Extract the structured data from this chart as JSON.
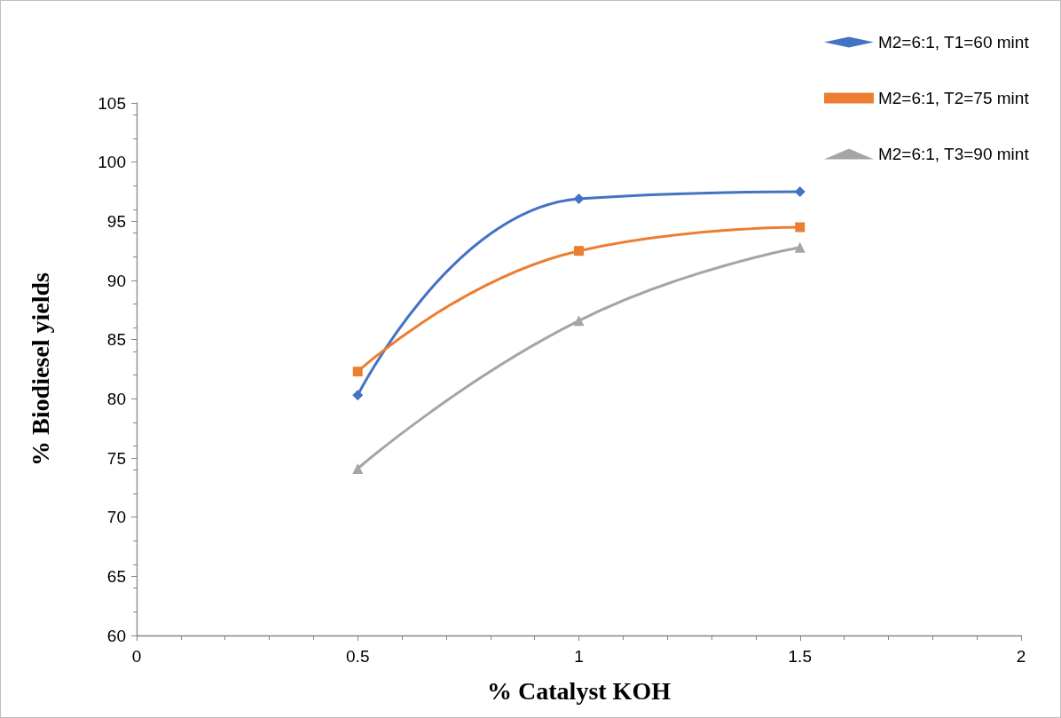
{
  "chart_data": {
    "type": "line",
    "xlabel": "% Catalyst KOH",
    "ylabel": "% Biodiesel yields",
    "x": [
      0.5,
      1,
      1.5
    ],
    "series": [
      {
        "name": "M2=6:1, T1=60 mint",
        "color": "#4472c4",
        "marker": "diamond",
        "values": [
          80.3,
          96.9,
          97.5
        ]
      },
      {
        "name": "M2=6:1, T2=75 mint",
        "color": "#ed7d31",
        "marker": "square",
        "values": [
          82.3,
          92.5,
          94.5
        ]
      },
      {
        "name": "M2=6:1, T3=90 mint",
        "color": "#a5a5a5",
        "marker": "triangle",
        "values": [
          74.1,
          86.6,
          92.8
        ]
      }
    ],
    "xlim": [
      0,
      2
    ],
    "xticks": [
      0,
      0.5,
      1,
      1.5,
      2
    ],
    "ylim": [
      60,
      105
    ],
    "yticks": [
      60,
      65,
      70,
      75,
      80,
      85,
      90,
      95,
      100,
      105
    ],
    "grid": false,
    "legend": "top right",
    "line_style": "solid"
  }
}
